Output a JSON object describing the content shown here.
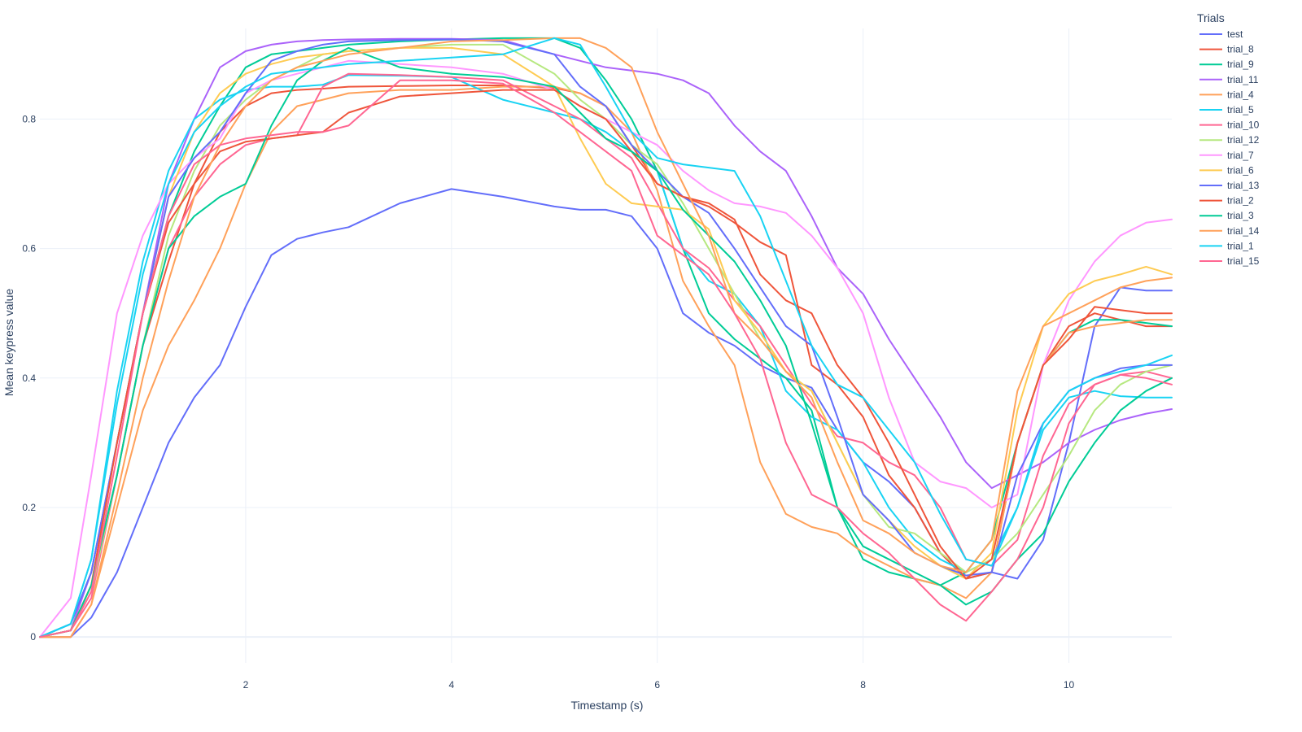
{
  "chart_data": {
    "type": "line",
    "xlabel": "Timestamp (s)",
    "ylabel": "Mean keypress value",
    "xlim": [
      0.0,
      11.0
    ],
    "ylim": [
      -0.04,
      0.94
    ],
    "xticks": [
      2,
      4,
      6,
      8,
      10
    ],
    "yticks": [
      0,
      0.2,
      0.4,
      0.6,
      0.8
    ],
    "ytick_labels": [
      "0",
      "0.2",
      "0.4",
      "0.6",
      "0.8"
    ],
    "grid": true,
    "legend_title": "Trials",
    "legend_position": "top-right",
    "x": [
      0,
      0.3,
      0.5,
      0.75,
      1.0,
      1.25,
      1.5,
      1.75,
      2.0,
      2.25,
      2.5,
      2.75,
      3.0,
      3.5,
      4.0,
      4.5,
      5.0,
      5.25,
      5.5,
      5.75,
      6.0,
      6.25,
      6.5,
      6.75,
      7.0,
      7.25,
      7.5,
      7.75,
      8.0,
      8.25,
      8.5,
      8.75,
      9.0,
      9.25,
      9.5,
      9.75,
      10.0,
      10.25,
      10.5,
      10.75,
      11.0
    ],
    "series": [
      {
        "name": "test",
        "color": "#636efa",
        "values": [
          0,
          0.0,
          0.03,
          0.1,
          0.2,
          0.3,
          0.37,
          0.42,
          0.51,
          0.59,
          0.615,
          0.625,
          0.633,
          0.67,
          0.692,
          0.68,
          0.665,
          0.66,
          0.66,
          0.65,
          0.6,
          0.5,
          0.47,
          0.45,
          0.42,
          0.4,
          0.385,
          0.32,
          0.27,
          0.24,
          0.2,
          0.13,
          0.09,
          0.1,
          0.09,
          0.15,
          0.3,
          0.48,
          0.54,
          0.535,
          0.535
        ]
      },
      {
        "name": "trial_8",
        "color": "#ef553b",
        "values": [
          0,
          0.01,
          0.08,
          0.25,
          0.45,
          0.58,
          0.7,
          0.78,
          0.82,
          0.84,
          0.845,
          0.847,
          0.85,
          0.851,
          0.852,
          0.852,
          0.848,
          0.84,
          0.82,
          0.76,
          0.7,
          0.68,
          0.665,
          0.64,
          0.61,
          0.59,
          0.42,
          0.39,
          0.34,
          0.25,
          0.2,
          0.13,
          0.09,
          0.1,
          0.3,
          0.42,
          0.48,
          0.5,
          0.49,
          0.48,
          0.48
        ]
      },
      {
        "name": "trial_9",
        "color": "#00cc96",
        "values": [
          0,
          0.02,
          0.1,
          0.3,
          0.5,
          0.65,
          0.75,
          0.82,
          0.88,
          0.9,
          0.905,
          0.91,
          0.915,
          0.92,
          0.923,
          0.925,
          0.925,
          0.91,
          0.86,
          0.8,
          0.72,
          0.6,
          0.5,
          0.46,
          0.43,
          0.4,
          0.35,
          0.2,
          0.12,
          0.1,
          0.09,
          0.08,
          0.1,
          0.15,
          0.3,
          0.42,
          0.47,
          0.49,
          0.49,
          0.485,
          0.48
        ]
      },
      {
        "name": "trial_11",
        "color": "#ab63fa",
        "values": [
          0,
          0.01,
          0.1,
          0.3,
          0.5,
          0.7,
          0.8,
          0.88,
          0.905,
          0.915,
          0.92,
          0.922,
          0.923,
          0.924,
          0.924,
          0.922,
          0.9,
          0.89,
          0.88,
          0.875,
          0.87,
          0.86,
          0.84,
          0.79,
          0.75,
          0.72,
          0.65,
          0.57,
          0.53,
          0.46,
          0.4,
          0.34,
          0.27,
          0.23,
          0.25,
          0.27,
          0.3,
          0.32,
          0.335,
          0.345,
          0.352
        ]
      },
      {
        "name": "trial_4",
        "color": "#ffa15a",
        "values": [
          0,
          0.0,
          0.05,
          0.2,
          0.35,
          0.45,
          0.52,
          0.6,
          0.7,
          0.78,
          0.82,
          0.83,
          0.84,
          0.845,
          0.845,
          0.85,
          0.85,
          0.84,
          0.82,
          0.78,
          0.69,
          0.55,
          0.48,
          0.42,
          0.27,
          0.19,
          0.17,
          0.16,
          0.13,
          0.11,
          0.09,
          0.08,
          0.06,
          0.1,
          0.3,
          0.42,
          0.47,
          0.48,
          0.485,
          0.49,
          0.49
        ]
      },
      {
        "name": "trial_5",
        "color": "#19d3f3",
        "values": [
          0,
          0.02,
          0.12,
          0.38,
          0.58,
          0.72,
          0.8,
          0.83,
          0.845,
          0.85,
          0.85,
          0.853,
          0.868,
          0.867,
          0.865,
          0.83,
          0.81,
          0.8,
          0.78,
          0.75,
          0.72,
          0.6,
          0.55,
          0.53,
          0.48,
          0.38,
          0.34,
          0.32,
          0.27,
          0.2,
          0.15,
          0.12,
          0.1,
          0.12,
          0.2,
          0.32,
          0.37,
          0.38,
          0.372,
          0.37,
          0.37
        ]
      },
      {
        "name": "trial_10",
        "color": "#ff6692",
        "values": [
          0,
          0.01,
          0.06,
          0.25,
          0.45,
          0.6,
          0.68,
          0.73,
          0.76,
          0.77,
          0.775,
          0.85,
          0.87,
          0.868,
          0.865,
          0.86,
          0.82,
          0.8,
          0.77,
          0.74,
          0.67,
          0.6,
          0.57,
          0.52,
          0.48,
          0.42,
          0.36,
          0.31,
          0.3,
          0.27,
          0.25,
          0.2,
          0.12,
          0.11,
          0.15,
          0.28,
          0.36,
          0.39,
          0.405,
          0.41,
          0.4
        ]
      },
      {
        "name": "trial_12",
        "color": "#b6e880",
        "values": [
          0,
          0.01,
          0.07,
          0.25,
          0.45,
          0.62,
          0.72,
          0.79,
          0.83,
          0.86,
          0.88,
          0.9,
          0.905,
          0.91,
          0.915,
          0.915,
          0.87,
          0.83,
          0.8,
          0.76,
          0.73,
          0.67,
          0.6,
          0.53,
          0.46,
          0.41,
          0.38,
          0.3,
          0.22,
          0.17,
          0.16,
          0.13,
          0.1,
          0.12,
          0.16,
          0.22,
          0.28,
          0.35,
          0.39,
          0.41,
          0.42
        ]
      },
      {
        "name": "trial_7",
        "color": "#ff97ff",
        "values": [
          0,
          0.06,
          0.25,
          0.5,
          0.62,
          0.7,
          0.74,
          0.77,
          0.84,
          0.86,
          0.87,
          0.88,
          0.89,
          0.885,
          0.88,
          0.87,
          0.845,
          0.82,
          0.8,
          0.78,
          0.76,
          0.72,
          0.69,
          0.67,
          0.665,
          0.655,
          0.62,
          0.57,
          0.5,
          0.37,
          0.27,
          0.24,
          0.23,
          0.2,
          0.22,
          0.42,
          0.52,
          0.58,
          0.62,
          0.64,
          0.645
        ]
      },
      {
        "name": "trial_6",
        "color": "#fecb52",
        "values": [
          0,
          0.01,
          0.08,
          0.3,
          0.5,
          0.68,
          0.78,
          0.84,
          0.87,
          0.885,
          0.895,
          0.9,
          0.905,
          0.91,
          0.91,
          0.9,
          0.85,
          0.77,
          0.7,
          0.67,
          0.665,
          0.66,
          0.63,
          0.52,
          0.47,
          0.41,
          0.38,
          0.3,
          0.22,
          0.18,
          0.14,
          0.11,
          0.09,
          0.13,
          0.35,
          0.48,
          0.53,
          0.55,
          0.56,
          0.572,
          0.56
        ]
      },
      {
        "name": "trial_13",
        "color": "#636efa",
        "values": [
          0,
          0.02,
          0.1,
          0.3,
          0.5,
          0.68,
          0.74,
          0.78,
          0.84,
          0.89,
          0.905,
          0.915,
          0.92,
          0.922,
          0.923,
          0.92,
          0.9,
          0.85,
          0.82,
          0.76,
          0.72,
          0.68,
          0.655,
          0.6,
          0.54,
          0.48,
          0.45,
          0.34,
          0.22,
          0.18,
          0.13,
          0.11,
          0.095,
          0.1,
          0.25,
          0.33,
          0.38,
          0.4,
          0.415,
          0.42,
          0.42
        ]
      },
      {
        "name": "trial_2",
        "color": "#ef553b",
        "values": [
          0,
          0.01,
          0.08,
          0.3,
          0.5,
          0.64,
          0.7,
          0.75,
          0.765,
          0.77,
          0.775,
          0.78,
          0.81,
          0.835,
          0.84,
          0.845,
          0.845,
          0.82,
          0.8,
          0.75,
          0.7,
          0.68,
          0.67,
          0.645,
          0.56,
          0.52,
          0.5,
          0.42,
          0.37,
          0.3,
          0.22,
          0.14,
          0.09,
          0.12,
          0.3,
          0.42,
          0.46,
          0.51,
          0.505,
          0.5,
          0.5
        ]
      },
      {
        "name": "trial_3",
        "color": "#00cc96",
        "values": [
          0,
          0.01,
          0.08,
          0.25,
          0.45,
          0.6,
          0.65,
          0.68,
          0.7,
          0.79,
          0.86,
          0.89,
          0.91,
          0.88,
          0.87,
          0.865,
          0.85,
          0.81,
          0.77,
          0.75,
          0.72,
          0.66,
          0.62,
          0.58,
          0.52,
          0.45,
          0.33,
          0.2,
          0.14,
          0.12,
          0.1,
          0.08,
          0.05,
          0.07,
          0.12,
          0.16,
          0.24,
          0.3,
          0.35,
          0.38,
          0.4
        ]
      },
      {
        "name": "trial_14",
        "color": "#ffa15a",
        "values": [
          0,
          0.0,
          0.05,
          0.22,
          0.4,
          0.55,
          0.68,
          0.76,
          0.82,
          0.86,
          0.88,
          0.89,
          0.9,
          0.91,
          0.92,
          0.922,
          0.925,
          0.925,
          0.91,
          0.88,
          0.78,
          0.7,
          0.62,
          0.5,
          0.46,
          0.41,
          0.37,
          0.27,
          0.18,
          0.16,
          0.13,
          0.11,
          0.1,
          0.15,
          0.38,
          0.48,
          0.5,
          0.52,
          0.54,
          0.55,
          0.555
        ]
      },
      {
        "name": "trial_1",
        "color": "#19d3f3",
        "values": [
          0,
          0.02,
          0.12,
          0.36,
          0.56,
          0.7,
          0.78,
          0.82,
          0.85,
          0.87,
          0.875,
          0.88,
          0.885,
          0.89,
          0.895,
          0.9,
          0.925,
          0.915,
          0.85,
          0.78,
          0.74,
          0.73,
          0.725,
          0.72,
          0.65,
          0.55,
          0.45,
          0.39,
          0.37,
          0.32,
          0.27,
          0.19,
          0.12,
          0.11,
          0.2,
          0.33,
          0.38,
          0.4,
          0.41,
          0.42,
          0.435
        ]
      },
      {
        "name": "trial_15",
        "color": "#ff6692",
        "values": [
          0,
          0.01,
          0.07,
          0.28,
          0.5,
          0.65,
          0.73,
          0.76,
          0.77,
          0.775,
          0.78,
          0.78,
          0.79,
          0.86,
          0.86,
          0.855,
          0.81,
          0.78,
          0.75,
          0.72,
          0.62,
          0.59,
          0.56,
          0.5,
          0.43,
          0.3,
          0.22,
          0.2,
          0.16,
          0.13,
          0.09,
          0.05,
          0.025,
          0.07,
          0.12,
          0.2,
          0.33,
          0.39,
          0.405,
          0.4,
          0.39
        ]
      }
    ]
  }
}
